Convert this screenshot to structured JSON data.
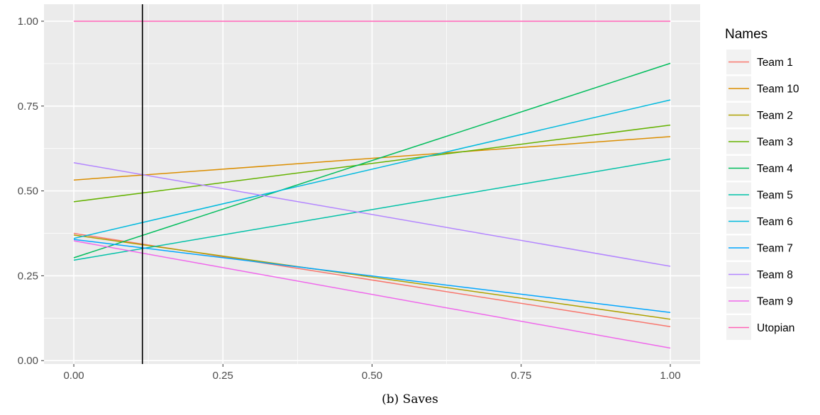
{
  "caption": "(b) Saves",
  "chart_data": {
    "type": "line",
    "title": "",
    "xlabel": "",
    "ylabel": "",
    "xlim": [
      -0.05,
      1.05
    ],
    "ylim": [
      -0.01,
      1.05
    ],
    "x_ticks": [
      0.0,
      0.25,
      0.5,
      0.75,
      1.0
    ],
    "x_tick_labels": [
      "0.00",
      "0.25",
      "0.50",
      "0.75",
      "1.00"
    ],
    "y_ticks": [
      0.0,
      0.25,
      0.5,
      0.75,
      1.0
    ],
    "y_tick_labels": [
      "0.00",
      "0.25",
      "0.50",
      "0.75",
      "1.00"
    ],
    "grid": true,
    "panel_background": "#ebebeb",
    "vline": {
      "x": 0.115,
      "color": "#000000"
    },
    "legend": {
      "title": "Names",
      "position": "right"
    },
    "series": [
      {
        "name": "Team 1",
        "color": "#F8766D",
        "x": [
          0,
          1
        ],
        "y": [
          0.375,
          0.1
        ]
      },
      {
        "name": "Team 10",
        "color": "#DB8E00",
        "x": [
          0,
          1
        ],
        "y": [
          0.532,
          0.66
        ]
      },
      {
        "name": "Team 2",
        "color": "#AEA200",
        "x": [
          0,
          1
        ],
        "y": [
          0.37,
          0.122
        ]
      },
      {
        "name": "Team 3",
        "color": "#64B200",
        "x": [
          0,
          1
        ],
        "y": [
          0.468,
          0.694
        ]
      },
      {
        "name": "Team 4",
        "color": "#00BD5C",
        "x": [
          0,
          1
        ],
        "y": [
          0.303,
          0.876
        ]
      },
      {
        "name": "Team 5",
        "color": "#00C1A7",
        "x": [
          0,
          1
        ],
        "y": [
          0.296,
          0.594
        ]
      },
      {
        "name": "Team 6",
        "color": "#00BADE",
        "x": [
          0,
          1
        ],
        "y": [
          0.36,
          0.768
        ]
      },
      {
        "name": "Team 7",
        "color": "#00A6FF",
        "x": [
          0,
          1
        ],
        "y": [
          0.357,
          0.142
        ]
      },
      {
        "name": "Team 8",
        "color": "#B385FF",
        "x": [
          0,
          1
        ],
        "y": [
          0.583,
          0.278
        ]
      },
      {
        "name": "Team 9",
        "color": "#EF67EB",
        "x": [
          0,
          1
        ],
        "y": [
          0.353,
          0.037
        ]
      },
      {
        "name": "Utopian",
        "color": "#FF63B6",
        "x": [
          0,
          1
        ],
        "y": [
          1.0,
          1.0
        ]
      }
    ]
  }
}
